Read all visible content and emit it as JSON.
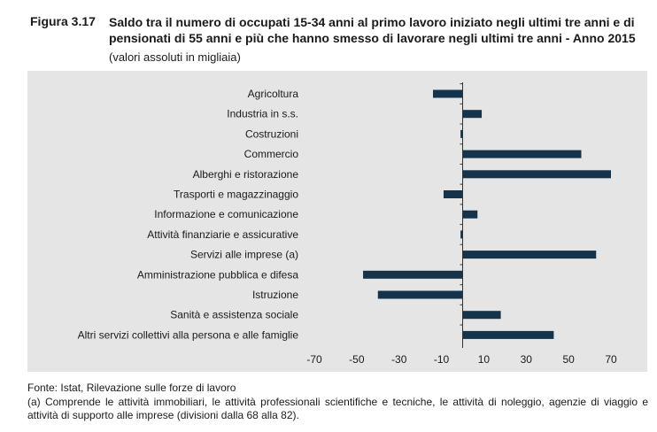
{
  "figure": {
    "label": "Figura 3.17",
    "title": "Saldo tra il numero di occupati 15-34 anni al primo lavoro iniziato negli ultimi tre anni e di pensionati di 55 anni e più che hanno smesso di lavorare negli ultimi tre anni - Anno 2015",
    "subtitle": "(valori assoluti in migliaia)"
  },
  "chart_data": {
    "type": "bar",
    "orientation": "horizontal",
    "title": "Saldo tra il numero di occupati 15-34 anni al primo lavoro iniziato negli ultimi tre anni e di pensionati di 55 anni e più che hanno smesso di lavorare negli ultimi tre anni - Anno 2015",
    "xlabel": "",
    "ylabel": "",
    "xlim": [
      -70,
      70
    ],
    "xticks": [
      -70,
      -50,
      -30,
      -10,
      10,
      30,
      50,
      70
    ],
    "grid": false,
    "bar_color": "#15334a",
    "categories": [
      "Agricoltura",
      "Industria in s.s.",
      "Costruzioni",
      "Commercio",
      "Alberghi e ristorazione",
      "Trasporti e magazzinaggio",
      "Informazione e comunicazione",
      "Attività finanziarie e assicurative",
      "Servizi alle imprese (a)",
      "Amministrazione pubblica e difesa",
      "Istruzione",
      "Sanità e assistenza sociale",
      "Altri servizi collettivi alla persona e alle famiglie"
    ],
    "values": [
      -14,
      9,
      -1,
      56,
      70,
      -9,
      7,
      -1,
      63,
      -47,
      -40,
      18,
      43
    ]
  },
  "footer": {
    "source": "Fonte: Istat, Rilevazione sulle forze di lavoro",
    "note": "(a) Comprende le attività immobiliari, le attività professionali scientifiche e tecniche, le attività di noleggio, agenzie di viaggio e attività di supporto alle imprese (divisioni dalla 68 alla 82)."
  }
}
